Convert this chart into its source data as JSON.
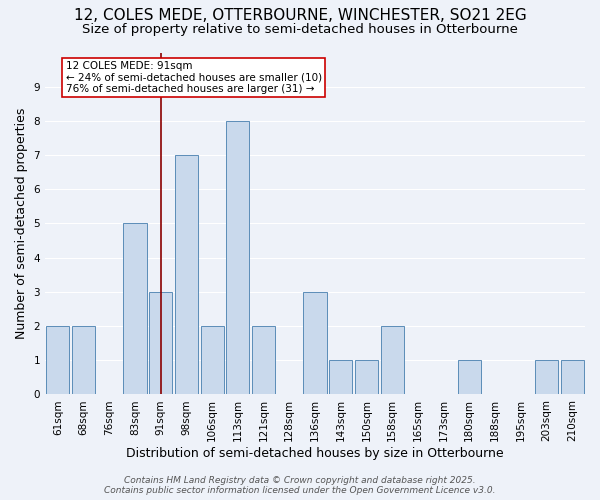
{
  "title_line1": "12, COLES MEDE, OTTERBOURNE, WINCHESTER, SO21 2EG",
  "title_line2": "Size of property relative to semi-detached houses in Otterbourne",
  "xlabel": "Distribution of semi-detached houses by size in Otterbourne",
  "ylabel": "Number of semi-detached properties",
  "footer_line1": "Contains HM Land Registry data © Crown copyright and database right 2025.",
  "footer_line2": "Contains public sector information licensed under the Open Government Licence v3.0.",
  "categories": [
    "61sqm",
    "68sqm",
    "76sqm",
    "83sqm",
    "91sqm",
    "98sqm",
    "106sqm",
    "113sqm",
    "121sqm",
    "128sqm",
    "136sqm",
    "143sqm",
    "150sqm",
    "158sqm",
    "165sqm",
    "173sqm",
    "180sqm",
    "188sqm",
    "195sqm",
    "203sqm",
    "210sqm"
  ],
  "values": [
    2,
    2,
    0,
    5,
    3,
    7,
    2,
    8,
    2,
    0,
    3,
    1,
    1,
    2,
    0,
    0,
    1,
    0,
    0,
    1,
    1
  ],
  "bar_color": "#c9d9ec",
  "bar_edge_color": "#5b8db8",
  "highlight_bar_index": 4,
  "highlight_line_color": "#8b0000",
  "annotation_text": "12 COLES MEDE: 91sqm\n← 24% of semi-detached houses are smaller (10)\n76% of semi-detached houses are larger (31) →",
  "annotation_box_color": "#ffffff",
  "annotation_box_edge_color": "#cc0000",
  "ylim": [
    0,
    10
  ],
  "yticks": [
    0,
    1,
    2,
    3,
    4,
    5,
    6,
    7,
    8,
    9,
    10
  ],
  "background_color": "#eef2f9",
  "grid_color": "#ffffff",
  "title_fontsize": 11,
  "subtitle_fontsize": 9.5,
  "axis_label_fontsize": 9,
  "tick_fontsize": 7.5,
  "annotation_fontsize": 7.5
}
